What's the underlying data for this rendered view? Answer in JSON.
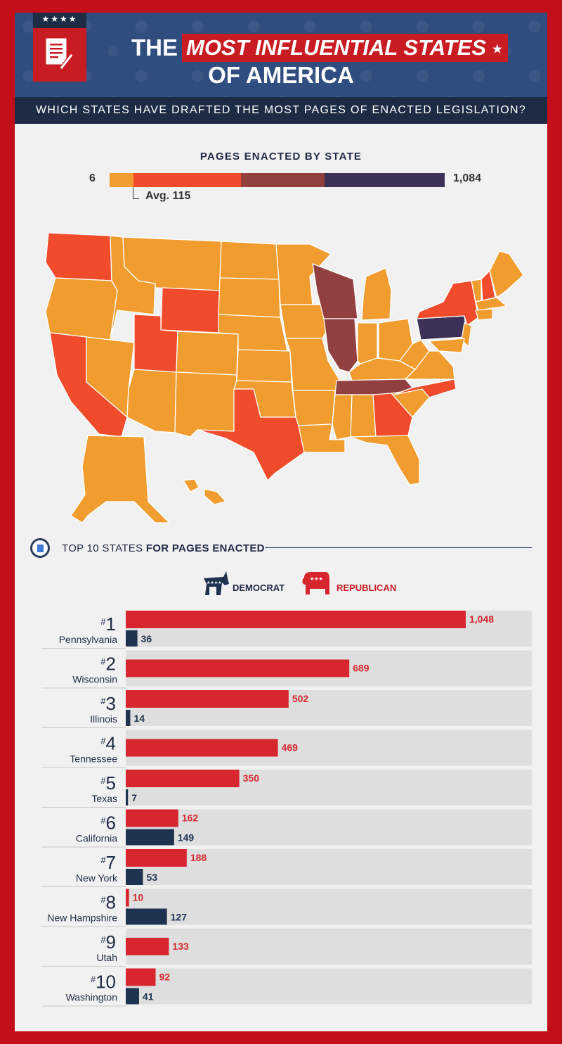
{
  "header": {
    "title_prefix": "THE",
    "title_highlight": "MOST INFLUENTIAL STATES",
    "title_line2": "OF AMERICA",
    "subtitle": "WHICH STATES HAVE DRAFTED THE MOST PAGES OF ENACTED LEGISLATION?",
    "badge_stars": "★★★★"
  },
  "legend": {
    "title": "PAGES ENACTED BY STATE",
    "min": "6",
    "max": "1,084",
    "avg_label": "Avg. 115",
    "colors": [
      "#f09c2e",
      "#f04b2a",
      "#923f40",
      "#3e3158"
    ]
  },
  "map": {
    "state_colors": {
      "WA": "#f04b2a",
      "OR": "#f09c2e",
      "CA": "#f04b2a",
      "NV": "#f09c2e",
      "ID": "#f09c2e",
      "MT": "#f09c2e",
      "WY": "#f04b2a",
      "UT": "#f04b2a",
      "AZ": "#f09c2e",
      "CO": "#f09c2e",
      "NM": "#f09c2e",
      "ND": "#f09c2e",
      "SD": "#f09c2e",
      "NE": "#f09c2e",
      "KS": "#f09c2e",
      "OK": "#f09c2e",
      "TX": "#f04b2a",
      "MN": "#f09c2e",
      "IA": "#f09c2e",
      "MO": "#f09c2e",
      "AR": "#f09c2e",
      "LA": "#f09c2e",
      "WI": "#923f40",
      "IL": "#923f40",
      "MI": "#f09c2e",
      "IN": "#f09c2e",
      "OH": "#f09c2e",
      "KY": "#f09c2e",
      "TN": "#923f40",
      "MS": "#f09c2e",
      "AL": "#f09c2e",
      "GA": "#f04b2a",
      "FL": "#f09c2e",
      "SC": "#f09c2e",
      "NC": "#f04b2a",
      "VA": "#f09c2e",
      "WV": "#f09c2e",
      "PA": "#3e3158",
      "NY": "#f04b2a",
      "VT": "#f09c2e",
      "NH": "#f04b2a",
      "ME": "#f09c2e",
      "MA": "#f09c2e",
      "CT": "#f09c2e",
      "NJ": "#f09c2e",
      "MD": "#f09c2e",
      "AK": "#f09c2e",
      "HI": "#f09c2e"
    }
  },
  "top10": {
    "heading_prefix": "TOP 10 STATES ",
    "heading_bold": "FOR PAGES ENACTED",
    "democrat_label": "DEMOCRAT",
    "republican_label": "REPUBLICAN"
  },
  "chart_data": {
    "type": "bar",
    "orientation": "horizontal",
    "categories": [
      "Pennsylvania",
      "Wisconsin",
      "Illinois",
      "Tennessee",
      "Texas",
      "California",
      "New York",
      "New Hampshire",
      "Utah",
      "Washington"
    ],
    "ranks": [
      "1",
      "2",
      "3",
      "4",
      "5",
      "6",
      "7",
      "8",
      "9",
      "10"
    ],
    "series": [
      {
        "name": "REPUBLICAN",
        "color": "#d8262f",
        "values": [
          1048,
          689,
          502,
          469,
          350,
          162,
          188,
          10,
          133,
          92
        ],
        "labels": [
          "1,048",
          "689",
          "502",
          "469",
          "350",
          "162",
          "188",
          "10",
          "133",
          "92"
        ]
      },
      {
        "name": "DEMOCRAT",
        "color": "#1e3350",
        "values": [
          36,
          null,
          14,
          null,
          7,
          149,
          53,
          127,
          null,
          41
        ],
        "labels": [
          "36",
          "",
          "14",
          "",
          "7",
          "149",
          "53",
          "127",
          "",
          "41"
        ]
      }
    ]
  }
}
